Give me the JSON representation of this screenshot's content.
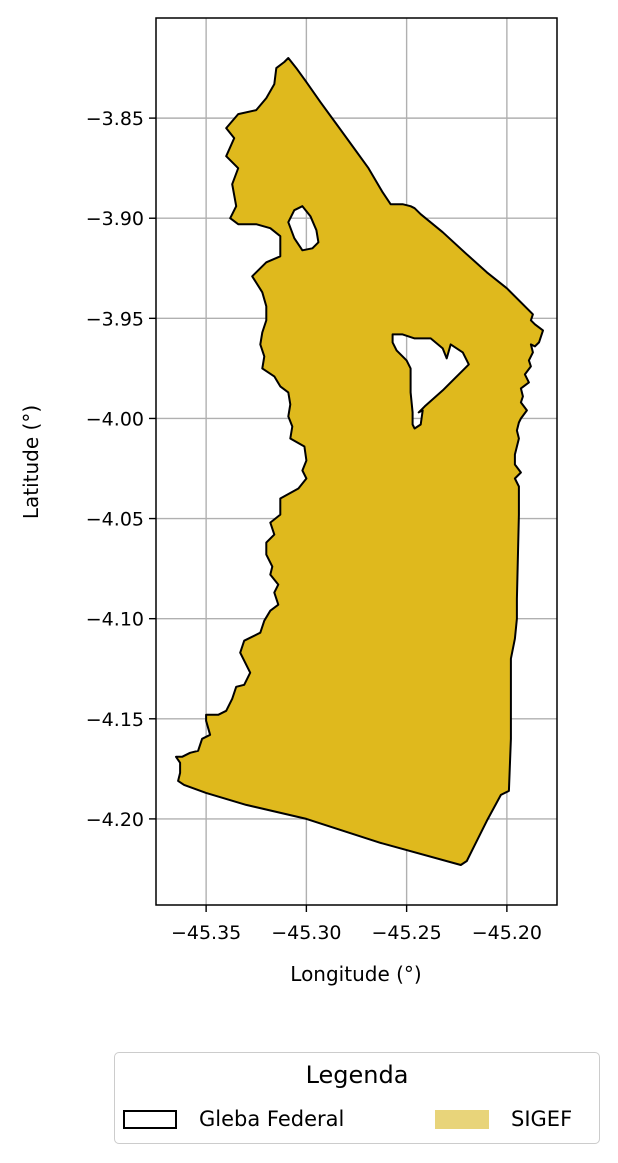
{
  "chart_data": {
    "type": "map",
    "xlabel": "Longitude (°)",
    "ylabel": "Latitude (°)",
    "xlim": [
      -45.375,
      -45.175
    ],
    "ylim": [
      -4.243,
      -3.8
    ],
    "grid": true,
    "x_ticks": [
      -45.35,
      -45.3,
      -45.25,
      -45.2
    ],
    "x_tick_labels": [
      "−45.35",
      "−45.30",
      "−45.25",
      "−45.20"
    ],
    "y_ticks": [
      -3.85,
      -3.9,
      -3.95,
      -4.0,
      -4.05,
      -4.1,
      -4.15,
      -4.2
    ],
    "y_tick_labels": [
      "−3.85",
      "−3.90",
      "−3.95",
      "−4.00",
      "−4.05",
      "−4.10",
      "−4.15",
      "−4.20"
    ],
    "layers": [
      {
        "name": "SIGEF",
        "color": "#dfb91d",
        "outline_color": "#000000",
        "outer": [
          [
            -45.309,
            -3.82
          ],
          [
            -45.305,
            -3.825
          ],
          [
            -45.3,
            -3.832
          ],
          [
            -45.293,
            -3.842
          ],
          [
            -45.285,
            -3.853
          ],
          [
            -45.277,
            -3.864
          ],
          [
            -45.269,
            -3.875
          ],
          [
            -45.262,
            -3.887
          ],
          [
            -45.258,
            -3.893
          ],
          [
            -45.252,
            -3.893
          ],
          [
            -45.248,
            -3.894
          ],
          [
            -45.246,
            -3.895
          ],
          [
            -45.243,
            -3.898
          ],
          [
            -45.232,
            -3.907
          ],
          [
            -45.22,
            -3.918
          ],
          [
            -45.21,
            -3.927
          ],
          [
            -45.2,
            -3.935
          ],
          [
            -45.187,
            -3.948
          ],
          [
            -45.188,
            -3.951
          ],
          [
            -45.186,
            -3.953
          ],
          [
            -45.182,
            -3.956
          ],
          [
            -45.183,
            -3.959
          ],
          [
            -45.184,
            -3.962
          ],
          [
            -45.186,
            -3.964
          ],
          [
            -45.188,
            -3.963
          ],
          [
            -45.187,
            -3.967
          ],
          [
            -45.189,
            -3.971
          ],
          [
            -45.188,
            -3.974
          ],
          [
            -45.191,
            -3.978
          ],
          [
            -45.189,
            -3.982
          ],
          [
            -45.193,
            -3.985
          ],
          [
            -45.192,
            -3.989
          ],
          [
            -45.193,
            -3.992
          ],
          [
            -45.19,
            -3.996
          ],
          [
            -45.193,
            -4.0
          ],
          [
            -45.194,
            -4.002
          ],
          [
            -45.195,
            -4.006
          ],
          [
            -45.194,
            -4.01
          ],
          [
            -45.196,
            -4.018
          ],
          [
            -45.196,
            -4.023
          ],
          [
            -45.193,
            -4.027
          ],
          [
            -45.196,
            -4.03
          ],
          [
            -45.194,
            -4.034
          ],
          [
            -45.194,
            -4.048
          ],
          [
            -45.195,
            -4.09
          ],
          [
            -45.195,
            -4.1
          ],
          [
            -45.196,
            -4.11
          ],
          [
            -45.198,
            -4.12
          ],
          [
            -45.198,
            -4.132
          ],
          [
            -45.198,
            -4.16
          ],
          [
            -45.199,
            -4.186
          ],
          [
            -45.203,
            -4.188
          ],
          [
            -45.21,
            -4.201
          ],
          [
            -45.216,
            -4.213
          ],
          [
            -45.22,
            -4.221
          ],
          [
            -45.223,
            -4.223
          ],
          [
            -45.263,
            -4.212
          ],
          [
            -45.3,
            -4.2
          ],
          [
            -45.33,
            -4.193
          ],
          [
            -45.35,
            -4.187
          ],
          [
            -45.361,
            -4.183
          ],
          [
            -45.364,
            -4.181
          ],
          [
            -45.363,
            -4.177
          ],
          [
            -45.363,
            -4.172
          ],
          [
            -45.365,
            -4.169
          ],
          [
            -45.362,
            -4.169
          ],
          [
            -45.358,
            -4.167
          ],
          [
            -45.354,
            -4.166
          ],
          [
            -45.352,
            -4.16
          ],
          [
            -45.348,
            -4.158
          ],
          [
            -45.35,
            -4.151
          ],
          [
            -45.35,
            -4.148
          ],
          [
            -45.344,
            -4.148
          ],
          [
            -45.34,
            -4.146
          ],
          [
            -45.337,
            -4.14
          ],
          [
            -45.335,
            -4.134
          ],
          [
            -45.331,
            -4.133
          ],
          [
            -45.328,
            -4.127
          ],
          [
            -45.331,
            -4.121
          ],
          [
            -45.333,
            -4.117
          ],
          [
            -45.331,
            -4.111
          ],
          [
            -45.323,
            -4.107
          ],
          [
            -45.321,
            -4.101
          ],
          [
            -45.318,
            -4.096
          ],
          [
            -45.314,
            -4.093
          ],
          [
            -45.316,
            -4.087
          ],
          [
            -45.314,
            -4.083
          ],
          [
            -45.318,
            -4.078
          ],
          [
            -45.317,
            -4.074
          ],
          [
            -45.32,
            -4.068
          ],
          [
            -45.32,
            -4.062
          ],
          [
            -45.316,
            -4.058
          ],
          [
            -45.318,
            -4.052
          ],
          [
            -45.313,
            -4.048
          ],
          [
            -45.313,
            -4.04
          ],
          [
            -45.304,
            -4.035
          ],
          [
            -45.3,
            -4.03
          ],
          [
            -45.302,
            -4.026
          ],
          [
            -45.3,
            -4.021
          ],
          [
            -45.301,
            -4.014
          ],
          [
            -45.308,
            -4.01
          ],
          [
            -45.307,
            -4.004
          ],
          [
            -45.309,
            -3.999
          ],
          [
            -45.308,
            -3.993
          ],
          [
            -45.309,
            -3.987
          ],
          [
            -45.313,
            -3.984
          ],
          [
            -45.316,
            -3.979
          ],
          [
            -45.322,
            -3.975
          ],
          [
            -45.321,
            -3.969
          ],
          [
            -45.323,
            -3.963
          ],
          [
            -45.322,
            -3.957
          ],
          [
            -45.32,
            -3.951
          ],
          [
            -45.32,
            -3.944
          ],
          [
            -45.322,
            -3.937
          ],
          [
            -45.327,
            -3.929
          ],
          [
            -45.32,
            -3.922
          ],
          [
            -45.313,
            -3.919
          ],
          [
            -45.313,
            -3.909
          ],
          [
            -45.318,
            -3.905
          ],
          [
            -45.325,
            -3.903
          ],
          [
            -45.334,
            -3.903
          ],
          [
            -45.338,
            -3.9
          ],
          [
            -45.335,
            -3.894
          ],
          [
            -45.337,
            -3.883
          ],
          [
            -45.334,
            -3.875
          ],
          [
            -45.34,
            -3.869
          ],
          [
            -45.336,
            -3.86
          ],
          [
            -45.34,
            -3.855
          ],
          [
            -45.334,
            -3.848
          ],
          [
            -45.325,
            -3.846
          ],
          [
            -45.32,
            -3.84
          ],
          [
            -45.316,
            -3.833
          ],
          [
            -45.315,
            -3.825
          ],
          [
            -45.311,
            -3.822
          ],
          [
            -45.309,
            -3.82
          ]
        ],
        "holes": [
          [
            [
              -45.257,
              -3.958
            ],
            [
              -45.252,
              -3.958
            ],
            [
              -45.246,
              -3.96
            ],
            [
              -45.238,
              -3.96
            ],
            [
              -45.232,
              -3.965
            ],
            [
              -45.23,
              -3.97
            ],
            [
              -45.228,
              -3.963
            ],
            [
              -45.222,
              -3.967
            ],
            [
              -45.219,
              -3.973
            ],
            [
              -45.221,
              -3.975
            ],
            [
              -45.232,
              -3.986
            ],
            [
              -45.241,
              -3.994
            ],
            [
              -45.244,
              -3.997
            ],
            [
              -45.242,
              -3.996
            ],
            [
              -45.243,
              -4.003
            ],
            [
              -45.246,
              -4.005
            ],
            [
              -45.247,
              -4.003
            ],
            [
              -45.247,
              -3.997
            ],
            [
              -45.248,
              -3.987
            ],
            [
              -45.248,
              -3.975
            ],
            [
              -45.25,
              -3.971
            ],
            [
              -45.255,
              -3.966
            ],
            [
              -45.257,
              -3.962
            ],
            [
              -45.257,
              -3.958
            ]
          ],
          [
            [
              -45.302,
              -3.894
            ],
            [
              -45.298,
              -3.899
            ],
            [
              -45.295,
              -3.906
            ],
            [
              -45.294,
              -3.912
            ],
            [
              -45.297,
              -3.915
            ],
            [
              -45.302,
              -3.916
            ],
            [
              -45.306,
              -3.91
            ],
            [
              -45.309,
              -3.902
            ],
            [
              -45.306,
              -3.896
            ],
            [
              -45.302,
              -3.894
            ]
          ]
        ]
      }
    ],
    "legend": {
      "title": "Legenda",
      "placement": "bottom",
      "entries": [
        {
          "label": "Gleba Federal",
          "style": "outline",
          "color": "#000000"
        },
        {
          "label": "SIGEF",
          "style": "fill",
          "color": "#e8d47a"
        }
      ]
    }
  }
}
